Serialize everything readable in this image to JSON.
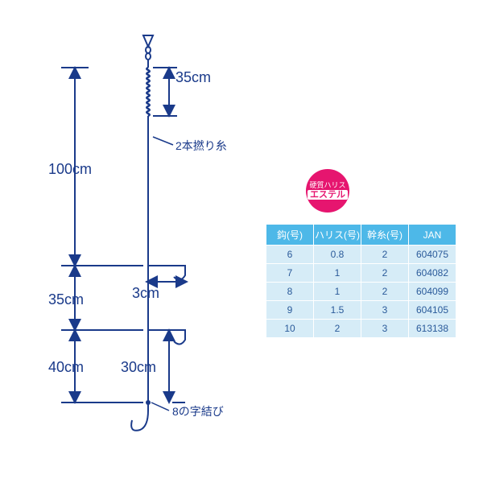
{
  "diagram": {
    "line_color": "#1a3a8a",
    "text_color": "#1a3a8a",
    "stroke_width": 2,
    "segments": {
      "top_coil": {
        "label": "35cm"
      },
      "main": {
        "label": "100cm"
      },
      "mid": {
        "label": "35cm"
      },
      "bottom": {
        "label": "40cm"
      },
      "branch_horiz": {
        "label": "3cm"
      },
      "branch_vert": {
        "label": "30cm"
      }
    },
    "labels": {
      "twisted": "2本撚り糸",
      "knot": "8の字結び"
    }
  },
  "badge": {
    "line1": "硬質ハリス",
    "line2": "エステル",
    "bg_color": "#e6156f",
    "text_color": "#ffffff"
  },
  "spec_table": {
    "type": "table",
    "header_bg": "#4db8e8",
    "header_color": "#ffffff",
    "row_bg": "#d6ecf7",
    "row_color": "#2a5a9a",
    "columns": [
      "鈎(号)",
      "ハリス(号)",
      "幹糸(号)",
      "JAN"
    ],
    "rows": [
      [
        "6",
        "0.8",
        "2",
        "604075"
      ],
      [
        "7",
        "1",
        "2",
        "604082"
      ],
      [
        "8",
        "1",
        "2",
        "604099"
      ],
      [
        "9",
        "1.5",
        "3",
        "604105"
      ],
      [
        "10",
        "2",
        "3",
        "613138"
      ]
    ]
  }
}
